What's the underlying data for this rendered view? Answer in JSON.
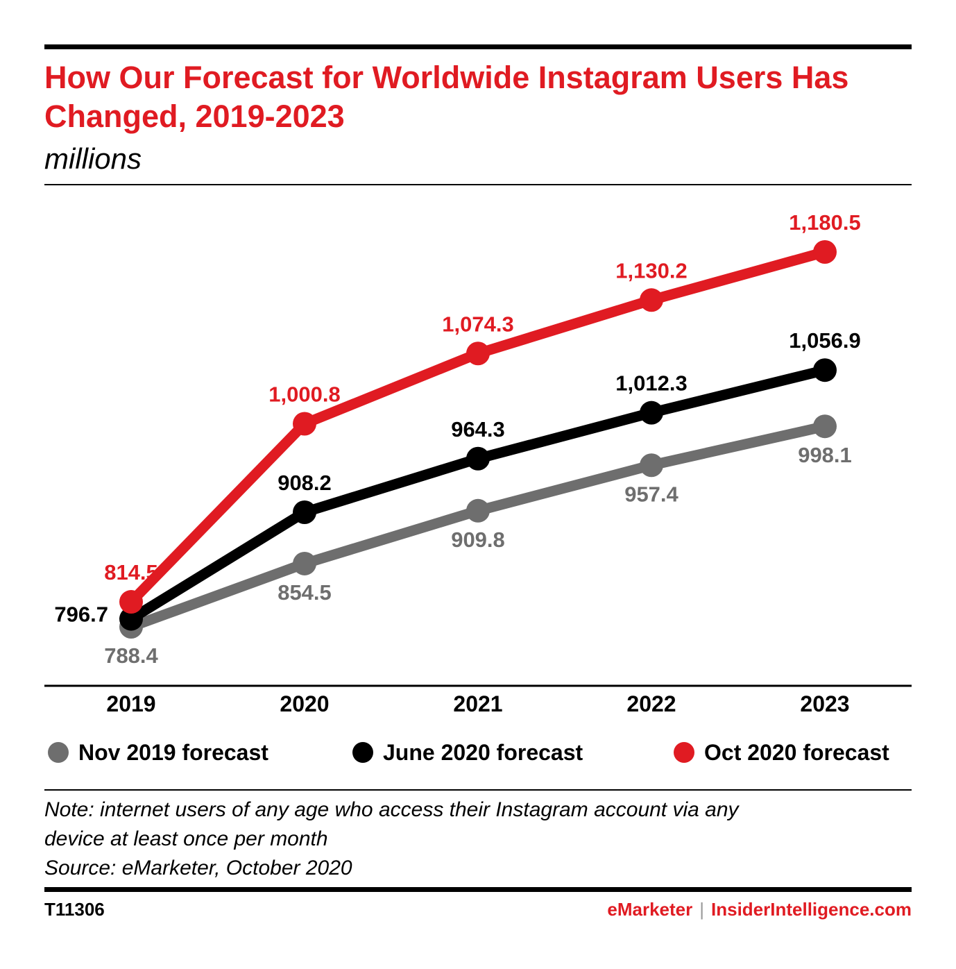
{
  "title": "How Our Forecast for Worldwide Instagram Users Has Changed, 2019-2023",
  "subtitle": "millions",
  "notes": {
    "line1": "Note: internet users of any age who access their Instagram account via any",
    "line2": "device at least once per month",
    "source": "Source: eMarketer, October 2020"
  },
  "footer": {
    "chart_id": "T11306",
    "brand": "eMarketer",
    "separator": "|",
    "site": "InsiderIntelligence.com"
  },
  "colors": {
    "accent_red": "#e01b22",
    "series_gray": "#6e6e6e",
    "series_black": "#000000"
  },
  "chart_data": {
    "type": "line",
    "title": "How Our Forecast for Worldwide Instagram Users Has Changed, 2019-2023",
    "ylabel": "millions",
    "xlabel": "",
    "categories": [
      "2019",
      "2020",
      "2021",
      "2022",
      "2023"
    ],
    "ylim": [
      780,
      1190
    ],
    "grid": false,
    "legend_position": "bottom",
    "series": [
      {
        "name": "Nov 2019 forecast",
        "color": "#6e6e6e",
        "values": [
          788.4,
          854.5,
          909.8,
          957.4,
          998.1
        ],
        "labels": [
          "788.4",
          "854.5",
          "909.8",
          "957.4",
          "998.1"
        ]
      },
      {
        "name": "June 2020 forecast",
        "color": "#000000",
        "values": [
          796.7,
          908.2,
          964.3,
          1012.3,
          1056.9
        ],
        "labels": [
          "796.7",
          "908.2",
          "964.3",
          "1,012.3",
          "1,056.9"
        ]
      },
      {
        "name": "Oct 2020 forecast",
        "color": "#e01b22",
        "values": [
          814.5,
          1000.8,
          1074.3,
          1130.2,
          1180.5
        ],
        "labels": [
          "814.5",
          "1,000.8",
          "1,074.3",
          "1,130.2",
          "1,180.5"
        ]
      }
    ]
  }
}
